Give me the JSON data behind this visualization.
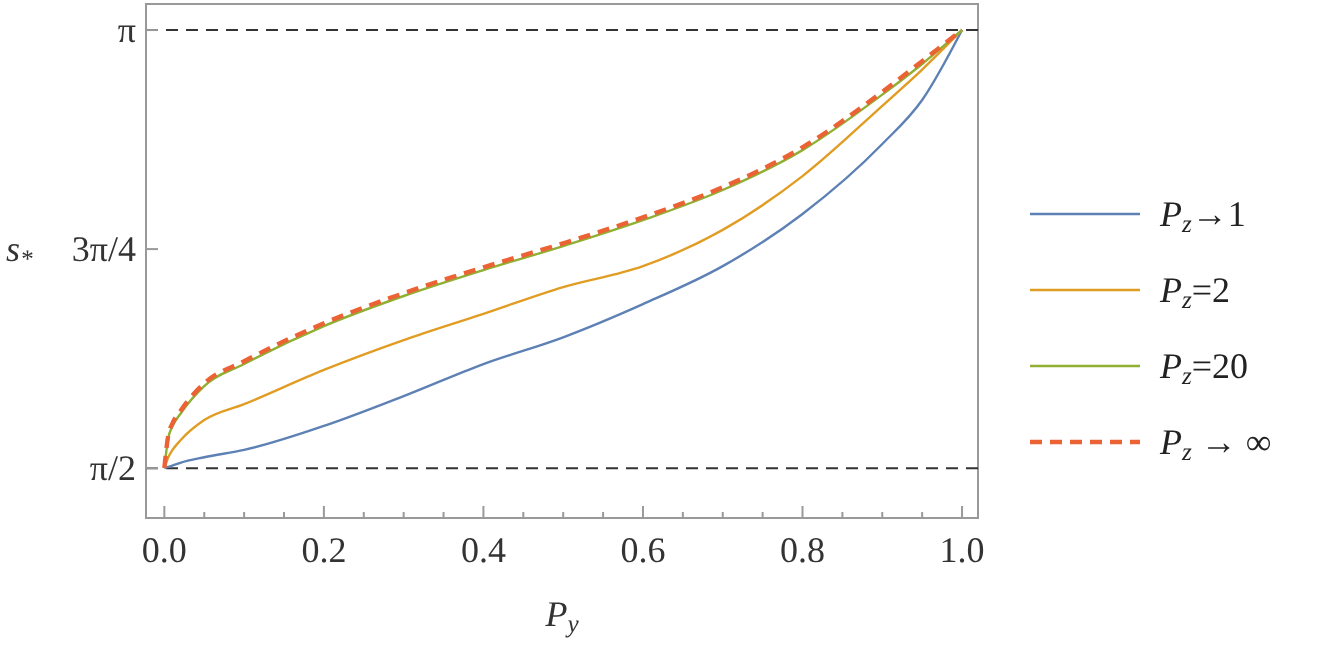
{
  "chart_data": {
    "type": "line",
    "xlabel": "P$_{y}$",
    "ylabel": "s$_{*}$",
    "legend": "right",
    "grid": false,
    "x": [
      0,
      0.005,
      0.01,
      0.02,
      0.05,
      0.1,
      0.2,
      0.3,
      0.4,
      0.5,
      0.6,
      0.7,
      0.8,
      0.9,
      0.95,
      1
    ],
    "series": [
      {
        "name": "P$_{z}$→1",
        "color": "#5e81b5",
        "line_style": "solid",
        "values": [
          1.571,
          1.575,
          1.58,
          1.59,
          1.61,
          1.636,
          1.722,
          1.829,
          1.944,
          2.04,
          2.159,
          2.295,
          2.482,
          2.733,
          2.891,
          3.142
        ]
      },
      {
        "name": "P$_{z}$=2",
        "color": "#e19c24",
        "line_style": "solid",
        "values": [
          1.571,
          1.61,
          1.635,
          1.67,
          1.743,
          1.8,
          1.923,
          2.03,
          2.124,
          2.22,
          2.295,
          2.425,
          2.618,
          2.87,
          3.0,
          3.142
        ]
      },
      {
        "name": "P$_{z}$=20",
        "color": "#8fb032",
        "line_style": "solid",
        "values": [
          1.571,
          1.68,
          1.72,
          1.765,
          1.865,
          1.944,
          2.08,
          2.188,
          2.281,
          2.367,
          2.46,
          2.568,
          2.711,
          2.91,
          3.02,
          3.142
        ]
      },
      {
        "name": "P$_{z}$ → ∞",
        "color": "#eb6235",
        "line_style": "dashed",
        "values": [
          1.571,
          1.69,
          1.73,
          1.775,
          1.875,
          1.954,
          2.09,
          2.198,
          2.291,
          2.377,
          2.47,
          2.578,
          2.721,
          2.92,
          3.03,
          3.142
        ]
      }
    ],
    "xlim": [
      -0.023,
      1.02
    ],
    "ylim": [
      1.392,
      3.235
    ],
    "xticks": [
      {
        "value": 0,
        "label": "0.0"
      },
      {
        "value": 0.05,
        "label": null
      },
      {
        "value": 0.1,
        "label": null
      },
      {
        "value": 0.15,
        "label": null
      },
      {
        "value": 0.2,
        "label": "0.2"
      },
      {
        "value": 0.25,
        "label": null
      },
      {
        "value": 0.3,
        "label": null
      },
      {
        "value": 0.35,
        "label": null
      },
      {
        "value": 0.4,
        "label": "0.4"
      },
      {
        "value": 0.45,
        "label": null
      },
      {
        "value": 0.5,
        "label": null
      },
      {
        "value": 0.55,
        "label": null
      },
      {
        "value": 0.6,
        "label": "0.6"
      },
      {
        "value": 0.65,
        "label": null
      },
      {
        "value": 0.7,
        "label": null
      },
      {
        "value": 0.75,
        "label": null
      },
      {
        "value": 0.8,
        "label": "0.8"
      },
      {
        "value": 0.85,
        "label": null
      },
      {
        "value": 0.9,
        "label": null
      },
      {
        "value": 0.95,
        "label": null
      },
      {
        "value": 1,
        "label": "1.0"
      }
    ],
    "yticks": [
      {
        "value": 1.5708,
        "label": "π/2"
      },
      {
        "value": 2.3562,
        "label": "3π/4"
      },
      {
        "value": 3.1416,
        "label": "π"
      }
    ],
    "ref_lines": [
      {
        "axis": "y",
        "value": 1.5708,
        "color": "#333333",
        "line_style": "dashed"
      },
      {
        "axis": "y",
        "value": 3.1416,
        "color": "#333333",
        "line_style": "dashed"
      }
    ]
  }
}
